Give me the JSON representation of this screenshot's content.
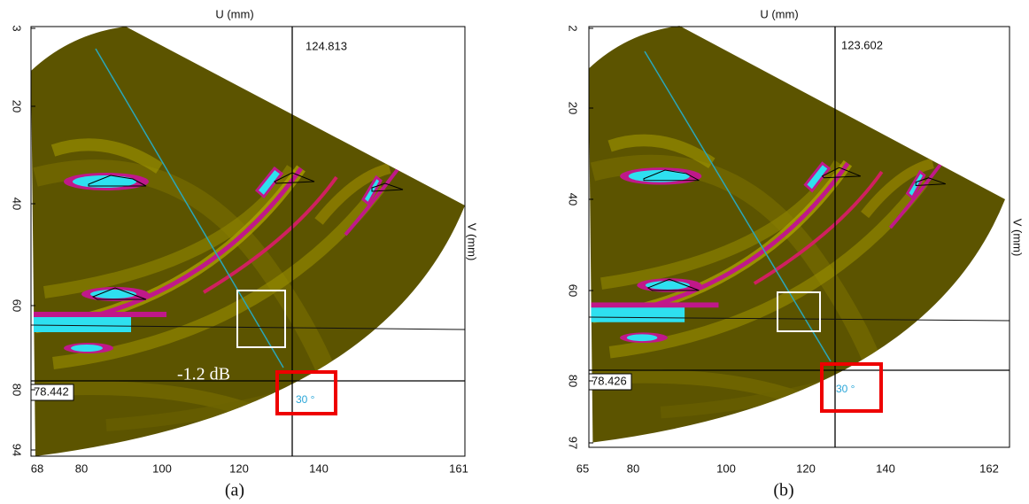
{
  "panels": [
    {
      "axis_top": "U (mm)",
      "axis_right": "V (mm)",
      "yticks": [
        "3",
        "20",
        "40",
        "60",
        "80",
        "94"
      ],
      "xticks": [
        "68",
        "80",
        "100",
        "120",
        "140",
        "161"
      ],
      "cursor_u": "124.813",
      "cursor_v": "78.442",
      "angle": "30 °",
      "gain": "-1.2 dB",
      "caption": "(a)"
    },
    {
      "axis_top": "U (mm)",
      "axis_right": "V (mm)",
      "yticks": [
        "2",
        "20",
        "40",
        "60",
        "80",
        "97"
      ],
      "xticks": [
        "65",
        "80",
        "100",
        "120",
        "140",
        "162"
      ],
      "cursor_u": "123.602",
      "cursor_v": "78.426",
      "angle": "30 °",
      "caption": "(b)"
    }
  ]
}
